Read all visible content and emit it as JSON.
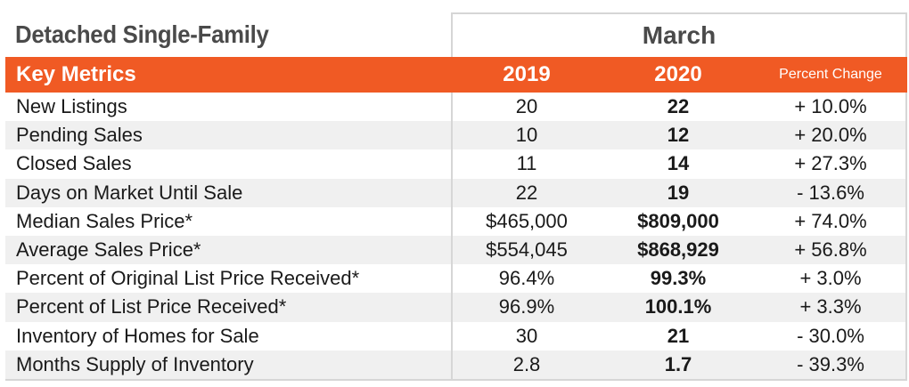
{
  "title": "Detached Single-Family",
  "period": "March",
  "header": {
    "label": "Key Metrics",
    "year1": "2019",
    "year2": "2020",
    "change": "Percent Change"
  },
  "rows": [
    {
      "metric": "New Listings",
      "y2019": "20",
      "y2020": "22",
      "change": "+ 10.0%"
    },
    {
      "metric": "Pending Sales",
      "y2019": "10",
      "y2020": "12",
      "change": "+ 20.0%"
    },
    {
      "metric": "Closed Sales",
      "y2019": "11",
      "y2020": "14",
      "change": "+ 27.3%"
    },
    {
      "metric": "Days on Market Until Sale",
      "y2019": "22",
      "y2020": "19",
      "change": "- 13.6%"
    },
    {
      "metric": "Median Sales Price*",
      "y2019": "$465,000",
      "y2020": "$809,000",
      "change": "+ 74.0%"
    },
    {
      "metric": "Average Sales Price*",
      "y2019": "$554,045",
      "y2020": "$868,929",
      "change": "+ 56.8%"
    },
    {
      "metric": "Percent of Original List Price Received*",
      "y2019": "96.4%",
      "y2020": "99.3%",
      "change": "+ 3.0%"
    },
    {
      "metric": "Percent of List Price Received*",
      "y2019": "96.9%",
      "y2020": "100.1%",
      "change": "+ 3.3%"
    },
    {
      "metric": "Inventory of Homes for Sale",
      "y2019": "30",
      "y2020": "21",
      "change": "- 30.0%"
    },
    {
      "metric": "Months Supply of Inventory",
      "y2019": "2.8",
      "y2020": "1.7",
      "change": "- 39.3%"
    }
  ],
  "colors": {
    "accent": "#f05a24",
    "row_alt": "#f0f0f0",
    "title_text": "#4a4a4a"
  }
}
